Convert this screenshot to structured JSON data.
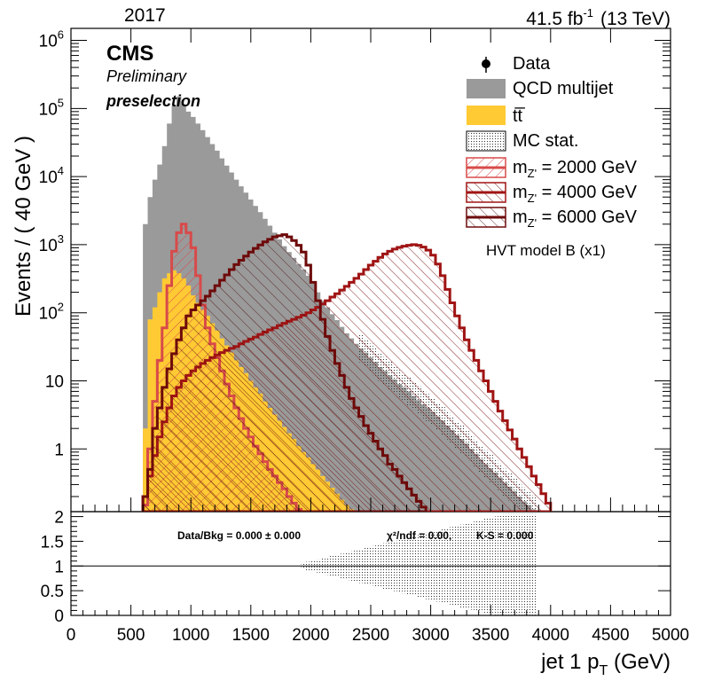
{
  "header": {
    "year": "2017",
    "lumi_main": "41.5 fb",
    "lumi_exp": "-1",
    "energy": "(13 TeV)"
  },
  "labels": {
    "cms": "CMS",
    "preliminary": "Preliminary",
    "selection": "preselection",
    "model": "HVT model B (x1)"
  },
  "legend": {
    "data": "Data",
    "qcd": "QCD multijet",
    "ttbar": "tt̅",
    "mcstat": "MC stat.",
    "sig_prefix": "m",
    "sig_sub": "Z'",
    "sig2000": " = 2000 GeV",
    "sig4000": " = 4000 GeV",
    "sig6000": " = 6000 GeV"
  },
  "ratio_text": {
    "databkg": "Data/Bkg = 0.000 ± 0.000",
    "chi2": "χ²/ndf = 0.00,",
    "ks": "K-S = 0.000"
  },
  "colors": {
    "qcd": "#9a9a9a",
    "ttbar": "#ffca33",
    "sig2000": "#d84a4a",
    "sig4000": "#a01414",
    "sig6000": "#6e0a0a"
  },
  "chart_data": {
    "type": "histogram",
    "xlabel": "jet 1 p_T (GeV)",
    "ylabel": "Events / ( 40 GeV )",
    "xlim": [
      0,
      5000
    ],
    "ylim": [
      0.12,
      1500000
    ],
    "yscale": "log",
    "ratio_ylim": [
      0,
      2.1
    ],
    "x_ticks": [
      "0",
      "500",
      "1000",
      "1500",
      "2000",
      "2500",
      "3000",
      "3500",
      "4000",
      "4500",
      "5000"
    ],
    "y_ticks": [
      "1",
      "10",
      "10^2",
      "10^3",
      "10^4",
      "10^5",
      "10^6"
    ],
    "ratio_ticks": [
      "0",
      "0.5",
      "1",
      "1.5",
      "2"
    ],
    "bin_width": 40,
    "series": [
      {
        "name": "QCD multijet",
        "kind": "filled",
        "points": [
          [
            600,
            2000
          ],
          [
            640,
            5000
          ],
          [
            680,
            9000
          ],
          [
            720,
            15000
          ],
          [
            760,
            28000
          ],
          [
            800,
            60000
          ],
          [
            840,
            110000
          ],
          [
            880,
            150000
          ],
          [
            920,
            115000
          ],
          [
            960,
            90000
          ],
          [
            1000,
            75000
          ],
          [
            1040,
            60000
          ],
          [
            1080,
            48000
          ],
          [
            1120,
            38000
          ],
          [
            1160,
            30000
          ],
          [
            1200,
            24000
          ],
          [
            1240,
            18500
          ],
          [
            1280,
            14500
          ],
          [
            1320,
            11500
          ],
          [
            1360,
            9000
          ],
          [
            1400,
            7200
          ],
          [
            1440,
            5800
          ],
          [
            1480,
            4600
          ],
          [
            1520,
            3700
          ],
          [
            1560,
            3000
          ],
          [
            1600,
            2400
          ],
          [
            1640,
            1900
          ],
          [
            1680,
            1500
          ],
          [
            1720,
            1200
          ],
          [
            1760,
            950
          ],
          [
            1800,
            780
          ],
          [
            1840,
            640
          ],
          [
            1880,
            520
          ],
          [
            1920,
            430
          ],
          [
            1960,
            350
          ],
          [
            2000,
            270
          ],
          [
            2040,
            200
          ],
          [
            2080,
            150
          ],
          [
            2120,
            120
          ],
          [
            2160,
            95
          ],
          [
            2200,
            78
          ],
          [
            2240,
            62
          ],
          [
            2280,
            50
          ],
          [
            2320,
            42
          ],
          [
            2360,
            35
          ],
          [
            2400,
            30
          ],
          [
            2440,
            26
          ],
          [
            2480,
            22
          ],
          [
            2520,
            19
          ],
          [
            2560,
            16
          ],
          [
            2600,
            14
          ],
          [
            2640,
            12
          ],
          [
            2680,
            10.5
          ],
          [
            2720,
            9
          ],
          [
            2760,
            8
          ],
          [
            2800,
            7
          ],
          [
            2840,
            6
          ],
          [
            2880,
            5.2
          ],
          [
            2920,
            4.5
          ],
          [
            2960,
            4
          ],
          [
            3000,
            3.5
          ],
          [
            3040,
            3
          ],
          [
            3080,
            2.6
          ],
          [
            3120,
            2.2
          ],
          [
            3160,
            1.9
          ],
          [
            3200,
            1.6
          ],
          [
            3240,
            1.4
          ],
          [
            3280,
            1.2
          ],
          [
            3320,
            1.0
          ],
          [
            3360,
            0.85
          ],
          [
            3400,
            0.7
          ],
          [
            3440,
            0.6
          ],
          [
            3480,
            0.52
          ],
          [
            3520,
            0.45
          ],
          [
            3560,
            0.38
          ],
          [
            3600,
            0.32
          ],
          [
            3640,
            0.28
          ],
          [
            3680,
            0.24
          ],
          [
            3720,
            0.2
          ],
          [
            3760,
            0.17
          ],
          [
            3800,
            0.15
          ],
          [
            3840,
            0.13
          ]
        ]
      },
      {
        "name": "tt̅",
        "kind": "filled",
        "points": [
          [
            600,
            2
          ],
          [
            640,
            80
          ],
          [
            680,
            120
          ],
          [
            720,
            200
          ],
          [
            760,
            320
          ],
          [
            800,
            380
          ],
          [
            840,
            420
          ],
          [
            880,
            380
          ],
          [
            920,
            320
          ],
          [
            960,
            250
          ],
          [
            1000,
            180
          ],
          [
            1040,
            140
          ],
          [
            1080,
            110
          ],
          [
            1120,
            90
          ],
          [
            1160,
            70
          ],
          [
            1200,
            55
          ],
          [
            1240,
            42
          ],
          [
            1280,
            33
          ],
          [
            1320,
            26
          ],
          [
            1360,
            20
          ],
          [
            1400,
            16
          ],
          [
            1440,
            13
          ],
          [
            1480,
            10
          ],
          [
            1520,
            8
          ],
          [
            1560,
            6.5
          ],
          [
            1600,
            5
          ],
          [
            1640,
            4
          ],
          [
            1680,
            3.2
          ],
          [
            1720,
            2.6
          ],
          [
            1760,
            2.1
          ],
          [
            1800,
            1.7
          ],
          [
            1840,
            1.4
          ],
          [
            1880,
            1.1
          ],
          [
            1920,
            0.9
          ],
          [
            1960,
            0.75
          ],
          [
            2000,
            0.6
          ],
          [
            2040,
            0.5
          ],
          [
            2080,
            0.4
          ],
          [
            2120,
            0.33
          ],
          [
            2160,
            0.27
          ],
          [
            2200,
            0.22
          ],
          [
            2240,
            0.18
          ],
          [
            2280,
            0.15
          ],
          [
            2320,
            0.13
          ]
        ]
      },
      {
        "name": "m_Z' = 2000 GeV",
        "kind": "hatched",
        "points": [
          [
            600,
            0.15
          ],
          [
            640,
            1
          ],
          [
            680,
            5
          ],
          [
            720,
            20
          ],
          [
            760,
            60
          ],
          [
            800,
            250
          ],
          [
            840,
            800
          ],
          [
            880,
            1500
          ],
          [
            920,
            2000
          ],
          [
            960,
            1500
          ],
          [
            1000,
            900
          ],
          [
            1040,
            350
          ],
          [
            1080,
            130
          ],
          [
            1120,
            60
          ],
          [
            1160,
            35
          ],
          [
            1200,
            22
          ],
          [
            1240,
            14
          ],
          [
            1280,
            9
          ],
          [
            1320,
            6
          ],
          [
            1360,
            4
          ],
          [
            1400,
            2.8
          ],
          [
            1440,
            2
          ],
          [
            1480,
            1.5
          ],
          [
            1520,
            1.1
          ],
          [
            1560,
            0.85
          ],
          [
            1600,
            0.65
          ],
          [
            1640,
            0.5
          ],
          [
            1680,
            0.4
          ],
          [
            1720,
            0.32
          ],
          [
            1760,
            0.26
          ],
          [
            1800,
            0.2
          ],
          [
            1840,
            0.16
          ],
          [
            1880,
            0.13
          ]
        ]
      },
      {
        "name": "m_Z' = 4000 GeV",
        "kind": "hatched",
        "points": [
          [
            600,
            0.2
          ],
          [
            640,
            0.5
          ],
          [
            680,
            2
          ],
          [
            720,
            4
          ],
          [
            760,
            8
          ],
          [
            800,
            15
          ],
          [
            840,
            25
          ],
          [
            880,
            40
          ],
          [
            920,
            60
          ],
          [
            960,
            90
          ],
          [
            1000,
            110
          ],
          [
            1040,
            130
          ],
          [
            1080,
            150
          ],
          [
            1120,
            175
          ],
          [
            1160,
            210
          ],
          [
            1200,
            250
          ],
          [
            1240,
            300
          ],
          [
            1280,
            360
          ],
          [
            1320,
            430
          ],
          [
            1360,
            510
          ],
          [
            1400,
            590
          ],
          [
            1440,
            680
          ],
          [
            1480,
            780
          ],
          [
            1520,
            880
          ],
          [
            1560,
            990
          ],
          [
            1600,
            1100
          ],
          [
            1640,
            1200
          ],
          [
            1680,
            1300
          ],
          [
            1720,
            1350
          ],
          [
            1760,
            1400
          ],
          [
            1800,
            1300
          ],
          [
            1840,
            1150
          ],
          [
            1880,
            980
          ],
          [
            1920,
            780
          ],
          [
            1960,
            500
          ],
          [
            2000,
            280
          ],
          [
            2040,
            150
          ],
          [
            2080,
            80
          ],
          [
            2120,
            45
          ],
          [
            2160,
            28
          ],
          [
            2200,
            18
          ],
          [
            2240,
            12
          ],
          [
            2280,
            8
          ],
          [
            2320,
            5.5
          ],
          [
            2360,
            4
          ],
          [
            2400,
            3
          ],
          [
            2440,
            2.2
          ],
          [
            2480,
            1.7
          ],
          [
            2520,
            1.3
          ],
          [
            2560,
            1
          ],
          [
            2600,
            0.8
          ],
          [
            2640,
            0.6
          ],
          [
            2680,
            0.5
          ],
          [
            2720,
            0.4
          ],
          [
            2760,
            0.32
          ],
          [
            2800,
            0.26
          ],
          [
            2840,
            0.21
          ],
          [
            2880,
            0.17
          ],
          [
            2920,
            0.14
          ]
        ]
      },
      {
        "name": "m_Z' = 6000 GeV",
        "kind": "hatched",
        "points": [
          [
            600,
            0.2
          ],
          [
            640,
            0.4
          ],
          [
            680,
            0.8
          ],
          [
            720,
            1.5
          ],
          [
            760,
            2.5
          ],
          [
            800,
            4
          ],
          [
            840,
            6
          ],
          [
            880,
            8
          ],
          [
            920,
            10
          ],
          [
            960,
            12
          ],
          [
            1000,
            14
          ],
          [
            1040,
            16
          ],
          [
            1080,
            18
          ],
          [
            1120,
            20
          ],
          [
            1160,
            22
          ],
          [
            1200,
            24
          ],
          [
            1240,
            26
          ],
          [
            1280,
            28
          ],
          [
            1320,
            30
          ],
          [
            1360,
            32
          ],
          [
            1400,
            35
          ],
          [
            1440,
            38
          ],
          [
            1480,
            41
          ],
          [
            1520,
            44
          ],
          [
            1560,
            48
          ],
          [
            1600,
            52
          ],
          [
            1640,
            56
          ],
          [
            1680,
            60
          ],
          [
            1720,
            65
          ],
          [
            1760,
            70
          ],
          [
            1800,
            75
          ],
          [
            1840,
            80
          ],
          [
            1880,
            86
          ],
          [
            1920,
            92
          ],
          [
            1960,
            100
          ],
          [
            2000,
            110
          ],
          [
            2040,
            120
          ],
          [
            2080,
            135
          ],
          [
            2120,
            150
          ],
          [
            2160,
            170
          ],
          [
            2200,
            190
          ],
          [
            2240,
            215
          ],
          [
            2280,
            245
          ],
          [
            2320,
            280
          ],
          [
            2360,
            320
          ],
          [
            2400,
            370
          ],
          [
            2440,
            430
          ],
          [
            2480,
            500
          ],
          [
            2520,
            570
          ],
          [
            2560,
            650
          ],
          [
            2600,
            730
          ],
          [
            2640,
            800
          ],
          [
            2680,
            860
          ],
          [
            2720,
            910
          ],
          [
            2760,
            950
          ],
          [
            2800,
            980
          ],
          [
            2840,
            1000
          ],
          [
            2880,
            980
          ],
          [
            2920,
            920
          ],
          [
            2960,
            830
          ],
          [
            3000,
            700
          ],
          [
            3040,
            520
          ],
          [
            3080,
            350
          ],
          [
            3120,
            220
          ],
          [
            3160,
            140
          ],
          [
            3200,
            90
          ],
          [
            3240,
            60
          ],
          [
            3280,
            40
          ],
          [
            3320,
            28
          ],
          [
            3360,
            20
          ],
          [
            3400,
            14
          ],
          [
            3440,
            10
          ],
          [
            3480,
            7
          ],
          [
            3520,
            5
          ],
          [
            3560,
            3.6
          ],
          [
            3600,
            2.6
          ],
          [
            3640,
            1.9
          ],
          [
            3680,
            1.4
          ],
          [
            3720,
            1
          ],
          [
            3760,
            0.75
          ],
          [
            3800,
            0.55
          ],
          [
            3840,
            0.4
          ],
          [
            3880,
            0.3
          ],
          [
            3920,
            0.22
          ],
          [
            3960,
            0.16
          ]
        ]
      }
    ]
  }
}
